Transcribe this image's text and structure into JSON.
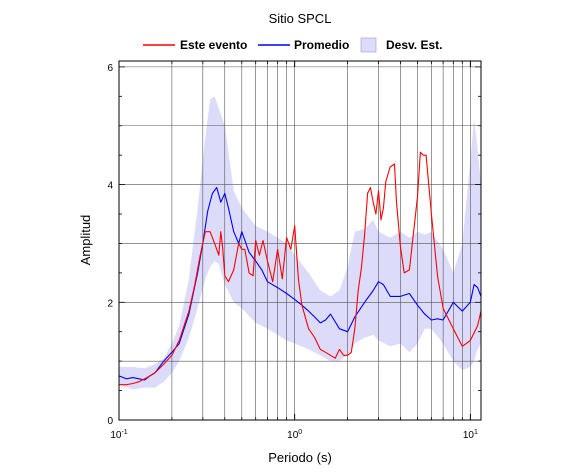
{
  "chart_data": {
    "type": "line",
    "title": "Sitio SPCL",
    "xlabel": "Periodo (s)",
    "ylabel": "Amplitud",
    "x_scale": "log",
    "xlim": [
      0.1,
      11.5
    ],
    "ylim": [
      0,
      6.1
    ],
    "grid": true,
    "legend_position": "top-center",
    "x_ticks": [
      {
        "value": 0.1,
        "base": "10",
        "exp": "-1"
      },
      {
        "value": 1,
        "base": "10",
        "exp": "0"
      },
      {
        "value": 10,
        "base": "10",
        "exp": "1"
      }
    ],
    "y_ticks": [
      {
        "value": 0,
        "label": "0"
      },
      {
        "value": 2,
        "label": "2"
      },
      {
        "value": 4,
        "label": "4"
      },
      {
        "value": 6,
        "label": "6"
      }
    ],
    "legend": [
      {
        "label": "Este evento",
        "kind": "line",
        "color": "#ff0000"
      },
      {
        "label": "Promedio",
        "kind": "line",
        "color": "#0000ff"
      },
      {
        "label": "Desv. Est.",
        "kind": "band",
        "color": "#dcdcfa"
      }
    ],
    "band": {
      "name": "Desv. Est.",
      "color": "#dcdcfa",
      "x": [
        0.1,
        0.12,
        0.14,
        0.16,
        0.18,
        0.2,
        0.22,
        0.25,
        0.28,
        0.31,
        0.33,
        0.35,
        0.37,
        0.4,
        0.45,
        0.5,
        0.6,
        0.7,
        0.8,
        0.9,
        1.0,
        1.2,
        1.4,
        1.6,
        1.8,
        2.0,
        2.2,
        2.5,
        2.8,
        3.0,
        3.5,
        4.0,
        4.5,
        5.0,
        5.5,
        6.0,
        7.0,
        8.0,
        9.0,
        10.0,
        10.5,
        11.0,
        11.5
      ],
      "upper": [
        0.9,
        0.9,
        0.88,
        0.95,
        1.05,
        1.3,
        1.6,
        2.4,
        3.6,
        4.8,
        5.45,
        5.5,
        5.3,
        5.0,
        3.9,
        3.6,
        3.3,
        3.2,
        3.1,
        3.0,
        2.8,
        2.5,
        2.2,
        2.1,
        2.2,
        2.6,
        3.2,
        3.25,
        3.4,
        3.2,
        3.1,
        3.2,
        3.1,
        3.2,
        3.15,
        3.2,
        2.9,
        2.5,
        3.0,
        4.4,
        5.1,
        4.6,
        4.0
      ],
      "lower": [
        0.6,
        0.52,
        0.55,
        0.55,
        0.65,
        0.8,
        1.0,
        1.4,
        1.9,
        2.4,
        2.6,
        2.7,
        2.65,
        2.3,
        2.0,
        1.9,
        1.65,
        1.55,
        1.45,
        1.35,
        1.3,
        1.2,
        1.1,
        1.0,
        1.0,
        1.1,
        1.3,
        1.4,
        1.45,
        1.35,
        1.25,
        1.3,
        1.15,
        1.3,
        1.55,
        1.55,
        1.3,
        1.0,
        0.85,
        0.9,
        1.0,
        1.2,
        1.3
      ]
    },
    "series": [
      {
        "name": "Promedio",
        "color": "#0000ff",
        "x": [
          0.1,
          0.11,
          0.12,
          0.13,
          0.14,
          0.15,
          0.16,
          0.18,
          0.2,
          0.22,
          0.25,
          0.28,
          0.3,
          0.32,
          0.34,
          0.36,
          0.38,
          0.4,
          0.42,
          0.45,
          0.48,
          0.5,
          0.55,
          0.6,
          0.65,
          0.7,
          0.8,
          0.9,
          1.0,
          1.1,
          1.2,
          1.3,
          1.4,
          1.5,
          1.6,
          1.8,
          2.0,
          2.2,
          2.5,
          2.8,
          3.0,
          3.2,
          3.5,
          4.0,
          4.5,
          5.0,
          5.5,
          6.0,
          6.5,
          7.0,
          8.0,
          9.0,
          10.0,
          10.5,
          11.0,
          11.5
        ],
        "values": [
          0.75,
          0.7,
          0.72,
          0.7,
          0.68,
          0.75,
          0.8,
          1.0,
          1.15,
          1.3,
          1.8,
          2.5,
          3.0,
          3.55,
          3.85,
          3.95,
          3.7,
          3.85,
          3.6,
          3.2,
          3.0,
          3.2,
          2.85,
          2.7,
          2.55,
          2.35,
          2.25,
          2.15,
          2.05,
          1.95,
          1.85,
          1.75,
          1.65,
          1.7,
          1.8,
          1.55,
          1.5,
          1.75,
          2.0,
          2.2,
          2.35,
          2.3,
          2.1,
          2.1,
          2.15,
          1.95,
          1.8,
          1.7,
          1.72,
          1.7,
          2.0,
          1.85,
          2.0,
          2.3,
          2.25,
          2.1
        ]
      },
      {
        "name": "Este evento",
        "color": "#ff0000",
        "x": [
          0.1,
          0.11,
          0.12,
          0.13,
          0.14,
          0.15,
          0.16,
          0.18,
          0.2,
          0.22,
          0.25,
          0.27,
          0.29,
          0.31,
          0.33,
          0.35,
          0.37,
          0.38,
          0.39,
          0.4,
          0.42,
          0.45,
          0.48,
          0.5,
          0.52,
          0.55,
          0.58,
          0.6,
          0.63,
          0.66,
          0.7,
          0.75,
          0.8,
          0.85,
          0.9,
          0.95,
          1.0,
          1.05,
          1.1,
          1.2,
          1.3,
          1.4,
          1.5,
          1.6,
          1.7,
          1.8,
          1.9,
          2.0,
          2.1,
          2.2,
          2.3,
          2.4,
          2.5,
          2.6,
          2.7,
          2.8,
          2.9,
          3.0,
          3.1,
          3.2,
          3.3,
          3.5,
          3.7,
          3.8,
          4.0,
          4.2,
          4.5,
          4.8,
          5.0,
          5.2,
          5.4,
          5.6,
          6.0,
          6.5,
          7.0,
          8.0,
          9.0,
          10.0,
          11.0,
          11.5
        ],
        "values": [
          0.6,
          0.6,
          0.62,
          0.65,
          0.7,
          0.75,
          0.8,
          0.95,
          1.1,
          1.35,
          1.85,
          2.3,
          2.8,
          3.2,
          3.2,
          3.0,
          2.8,
          3.2,
          2.9,
          2.45,
          2.35,
          2.55,
          3.0,
          2.9,
          2.9,
          2.5,
          2.45,
          3.05,
          2.8,
          3.05,
          2.7,
          2.35,
          2.9,
          2.4,
          3.1,
          2.9,
          3.3,
          2.4,
          1.95,
          1.55,
          1.4,
          1.2,
          1.15,
          1.1,
          1.05,
          1.2,
          1.1,
          1.1,
          1.15,
          1.55,
          2.2,
          2.6,
          3.15,
          3.85,
          3.95,
          3.7,
          3.5,
          3.9,
          3.4,
          3.6,
          4.05,
          4.3,
          4.35,
          3.7,
          2.95,
          2.5,
          2.55,
          3.3,
          3.8,
          4.55,
          4.5,
          4.5,
          3.5,
          2.45,
          1.9,
          1.55,
          1.25,
          1.35,
          1.6,
          1.85
        ]
      }
    ]
  }
}
